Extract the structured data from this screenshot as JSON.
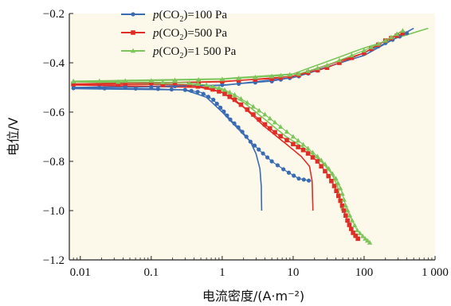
{
  "chart_data": {
    "type": "scatter",
    "xlabel": "电流密度/(A·m⁻²)",
    "ylabel": "电位/V",
    "xscale": "log",
    "xlim": [
      0.007,
      1000
    ],
    "ylim": [
      -1.2,
      -0.2
    ],
    "xticks": [
      {
        "value": 0.01,
        "label": "0.01"
      },
      {
        "value": 0.1,
        "label": "0.1"
      },
      {
        "value": 1,
        "label": "1"
      },
      {
        "value": 10,
        "label": "10"
      },
      {
        "value": 100,
        "label": "100"
      },
      {
        "value": 1000,
        "label": "1 000"
      }
    ],
    "yticks": [
      {
        "value": -0.2,
        "label": "−0.2"
      },
      {
        "value": -0.4,
        "label": "−0.4"
      },
      {
        "value": -0.6,
        "label": "−0.6"
      },
      {
        "value": -0.8,
        "label": "−0.8"
      },
      {
        "value": -1.0,
        "label": "−1.0"
      },
      {
        "value": -1.2,
        "label": "−1.2"
      }
    ],
    "grid": false,
    "legend_position": "top-left",
    "series": [
      {
        "name_parts": [
          "p",
          "(CO",
          "2",
          ")=100 Pa"
        ],
        "color": "#3a6cb4",
        "marker": "circle",
        "anodic": [
          [
            0.008,
            -0.502
          ],
          [
            0.1,
            -0.498
          ],
          [
            1,
            -0.49
          ],
          [
            5,
            -0.475
          ],
          [
            12,
            -0.455
          ],
          [
            30,
            -0.42
          ],
          [
            100,
            -0.36
          ],
          [
            200,
            -0.32
          ],
          [
            400,
            -0.28
          ]
        ],
        "cathodic": [
          [
            0.008,
            -0.503
          ],
          [
            0.1,
            -0.505
          ],
          [
            0.3,
            -0.51
          ],
          [
            0.5,
            -0.52
          ],
          [
            0.75,
            -0.55
          ],
          [
            1.0,
            -0.59
          ],
          [
            1.3,
            -0.63
          ],
          [
            1.8,
            -0.67
          ],
          [
            2.5,
            -0.72
          ],
          [
            3.5,
            -0.76
          ],
          [
            5,
            -0.8
          ],
          [
            8,
            -0.84
          ],
          [
            12,
            -0.87
          ],
          [
            18,
            -0.88
          ]
        ],
        "fit_anodic": [
          [
            0.008,
            -0.5
          ],
          [
            1,
            -0.492
          ],
          [
            10,
            -0.46
          ],
          [
            100,
            -0.37
          ],
          [
            500,
            -0.26
          ]
        ],
        "fit_cathodic": [
          [
            0.008,
            -0.505
          ],
          [
            0.3,
            -0.51
          ],
          [
            0.6,
            -0.54
          ],
          [
            1,
            -0.6
          ],
          [
            1.7,
            -0.67
          ],
          [
            2.5,
            -0.72
          ],
          [
            3,
            -0.77
          ],
          [
            3.4,
            -0.83
          ],
          [
            3.55,
            -0.9
          ],
          [
            3.6,
            -1.0
          ]
        ]
      },
      {
        "name_parts": [
          "p",
          "(CO",
          "2",
          ")=500 Pa"
        ],
        "color": "#e02e26",
        "marker": "square",
        "anodic": [
          [
            0.008,
            -0.485
          ],
          [
            0.1,
            -0.482
          ],
          [
            1,
            -0.475
          ],
          [
            5,
            -0.465
          ],
          [
            12,
            -0.45
          ],
          [
            30,
            -0.42
          ],
          [
            100,
            -0.36
          ],
          [
            200,
            -0.31
          ],
          [
            350,
            -0.28
          ]
        ],
        "cathodic": [
          [
            0.008,
            -0.487
          ],
          [
            0.3,
            -0.49
          ],
          [
            0.6,
            -0.5
          ],
          [
            1.0,
            -0.52
          ],
          [
            1.5,
            -0.55
          ],
          [
            2.5,
            -0.6
          ],
          [
            4,
            -0.65
          ],
          [
            6,
            -0.69
          ],
          [
            10,
            -0.73
          ],
          [
            15,
            -0.76
          ],
          [
            22,
            -0.8
          ],
          [
            30,
            -0.85
          ],
          [
            38,
            -0.9
          ],
          [
            45,
            -0.95
          ],
          [
            52,
            -1.0
          ],
          [
            60,
            -1.05
          ],
          [
            70,
            -1.09
          ],
          [
            85,
            -1.12
          ]
        ],
        "fit_anodic": [
          [
            0.008,
            -0.487
          ],
          [
            1,
            -0.477
          ],
          [
            10,
            -0.455
          ],
          [
            100,
            -0.36
          ],
          [
            350,
            -0.27
          ]
        ],
        "fit_cathodic": [
          [
            0.008,
            -0.49
          ],
          [
            0.5,
            -0.5
          ],
          [
            1,
            -0.52
          ],
          [
            2,
            -0.58
          ],
          [
            4,
            -0.66
          ],
          [
            8,
            -0.73
          ],
          [
            13,
            -0.78
          ],
          [
            17,
            -0.82
          ],
          [
            18.5,
            -0.88
          ],
          [
            19,
            -1.0
          ]
        ]
      },
      {
        "name_parts": [
          "p",
          "(CO",
          "2",
          ")=1 500 Pa"
        ],
        "color": "#7cc65c",
        "marker": "triangle",
        "anodic": [
          [
            0.008,
            -0.475
          ],
          [
            0.1,
            -0.473
          ],
          [
            1,
            -0.467
          ],
          [
            5,
            -0.455
          ],
          [
            12,
            -0.445
          ],
          [
            30,
            -0.41
          ],
          [
            100,
            -0.35
          ],
          [
            200,
            -0.31
          ],
          [
            350,
            -0.27
          ]
        ],
        "cathodic": [
          [
            0.008,
            -0.476
          ],
          [
            0.3,
            -0.48
          ],
          [
            0.6,
            -0.49
          ],
          [
            1.0,
            -0.505
          ],
          [
            1.5,
            -0.53
          ],
          [
            2.5,
            -0.57
          ],
          [
            4,
            -0.61
          ],
          [
            6,
            -0.65
          ],
          [
            10,
            -0.7
          ],
          [
            15,
            -0.74
          ],
          [
            22,
            -0.78
          ],
          [
            30,
            -0.82
          ],
          [
            40,
            -0.87
          ],
          [
            48,
            -0.92
          ],
          [
            55,
            -0.98
          ],
          [
            65,
            -1.03
          ],
          [
            80,
            -1.08
          ],
          [
            100,
            -1.11
          ],
          [
            120,
            -1.13
          ]
        ],
        "fit_anodic": [
          [
            0.008,
            -0.475
          ],
          [
            1,
            -0.465
          ],
          [
            10,
            -0.445
          ],
          [
            100,
            -0.34
          ],
          [
            800,
            -0.26
          ]
        ],
        "fit_cathodic": [
          [
            0.008,
            -0.477
          ],
          [
            0.5,
            -0.49
          ],
          [
            1,
            -0.51
          ],
          [
            2,
            -0.56
          ],
          [
            4,
            -0.63
          ],
          [
            8,
            -0.7
          ],
          [
            15,
            -0.75
          ],
          [
            25,
            -0.8
          ],
          [
            35,
            -0.85
          ],
          [
            42,
            -0.9
          ],
          [
            46,
            -0.95
          ],
          [
            48,
            -1.0
          ]
        ]
      }
    ]
  }
}
